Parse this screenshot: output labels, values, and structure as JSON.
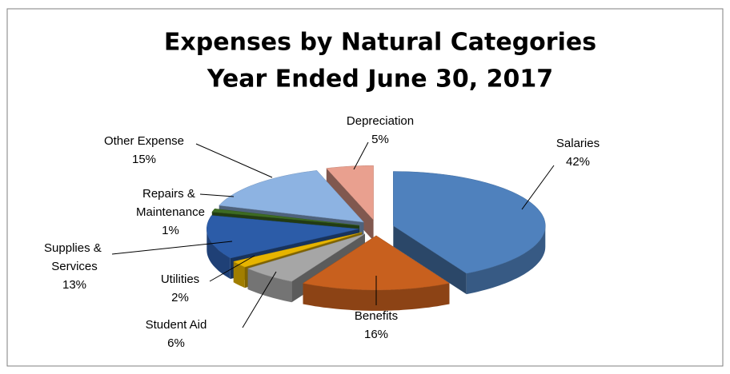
{
  "chart_data": {
    "type": "pie3d",
    "title": "Expenses by Natural Categories",
    "subtitle": "Year Ended June 30, 2017",
    "categories": [
      "Salaries",
      "Benefits",
      "Student Aid",
      "Utilities",
      "Supplies & Services",
      "Repairs & Maintenance",
      "Other Expense",
      "Depreciation"
    ],
    "values": [
      42,
      16,
      6,
      2,
      13,
      1,
      15,
      5
    ],
    "value_labels": [
      "42%",
      "16%",
      "6%",
      "2%",
      "13%",
      "1%",
      "15%",
      "5%"
    ],
    "colors": [
      "#4f81bd",
      "#c8601e",
      "#a6a6a6",
      "#e6b400",
      "#2c5ca8",
      "#3d6b22",
      "#8db3e2",
      "#e9a08f"
    ]
  }
}
